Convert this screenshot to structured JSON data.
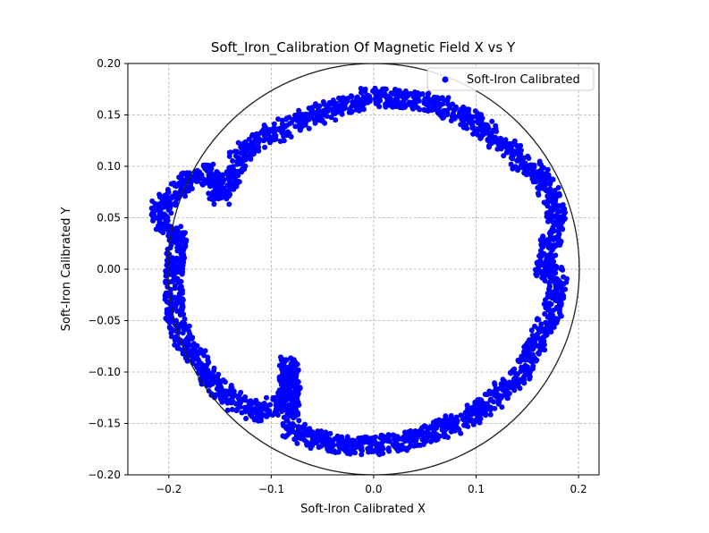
{
  "chart_data": {
    "type": "scatter",
    "title": "Soft_Iron_Calibration Of Magnetic Field X vs Y",
    "xlabel": "Soft-Iron Calibrated X",
    "ylabel": "Soft-Iron Calibrated Y",
    "xlim": [
      -0.24,
      0.22
    ],
    "ylim": [
      -0.2,
      0.2
    ],
    "x_ticks": [
      -0.2,
      -0.1,
      0.0,
      0.1,
      0.2
    ],
    "x_tick_labels": [
      "−0.2",
      "−0.1",
      "0.0",
      "0.1",
      "0.2"
    ],
    "y_ticks": [
      -0.2,
      -0.15,
      -0.1,
      -0.05,
      0.0,
      0.05,
      0.1,
      0.15,
      0.2
    ],
    "y_tick_labels": [
      "−0.20",
      "−0.15",
      "−0.10",
      "−0.05",
      "0.00",
      "0.05",
      "0.10",
      "0.15",
      "0.20"
    ],
    "grid": true,
    "legend_position": "top-right",
    "reference_circle": {
      "center": [
        0,
        0
      ],
      "radius": 0.2,
      "color": "#222222"
    },
    "series": [
      {
        "name": "Soft-Iron Calibrated",
        "color": "#0000ff",
        "points": [
          [
            0.0,
            0.168
          ],
          [
            0.03,
            0.165
          ],
          [
            0.06,
            0.16
          ],
          [
            0.09,
            0.148
          ],
          [
            0.11,
            0.135
          ],
          [
            0.13,
            0.118
          ],
          [
            0.15,
            0.1
          ],
          [
            0.165,
            0.085
          ],
          [
            0.175,
            0.065
          ],
          [
            0.18,
            0.045
          ],
          [
            0.17,
            0.02
          ],
          [
            0.165,
            0.0
          ],
          [
            0.18,
            -0.01
          ],
          [
            0.175,
            -0.04
          ],
          [
            0.16,
            -0.07
          ],
          [
            0.145,
            -0.1
          ],
          [
            0.125,
            -0.12
          ],
          [
            0.1,
            -0.14
          ],
          [
            0.07,
            -0.155
          ],
          [
            0.04,
            -0.165
          ],
          [
            0.0,
            -0.172
          ],
          [
            -0.04,
            -0.17
          ],
          [
            -0.08,
            -0.158
          ],
          [
            -0.085,
            -0.09
          ],
          [
            -0.08,
            -0.12
          ],
          [
            -0.11,
            -0.14
          ],
          [
            -0.14,
            -0.125
          ],
          [
            -0.165,
            -0.1
          ],
          [
            -0.185,
            -0.07
          ],
          [
            -0.195,
            -0.04
          ],
          [
            -0.195,
            0.0
          ],
          [
            -0.19,
            0.03
          ],
          [
            -0.205,
            0.045
          ],
          [
            -0.21,
            0.06
          ],
          [
            -0.19,
            0.08
          ],
          [
            -0.16,
            0.095
          ],
          [
            -0.15,
            0.07
          ],
          [
            -0.14,
            0.085
          ],
          [
            -0.13,
            0.11
          ],
          [
            -0.11,
            0.128
          ],
          [
            -0.08,
            0.14
          ],
          [
            -0.05,
            0.152
          ],
          [
            -0.02,
            0.16
          ],
          [
            0.0,
            0.17
          ]
        ]
      }
    ]
  }
}
